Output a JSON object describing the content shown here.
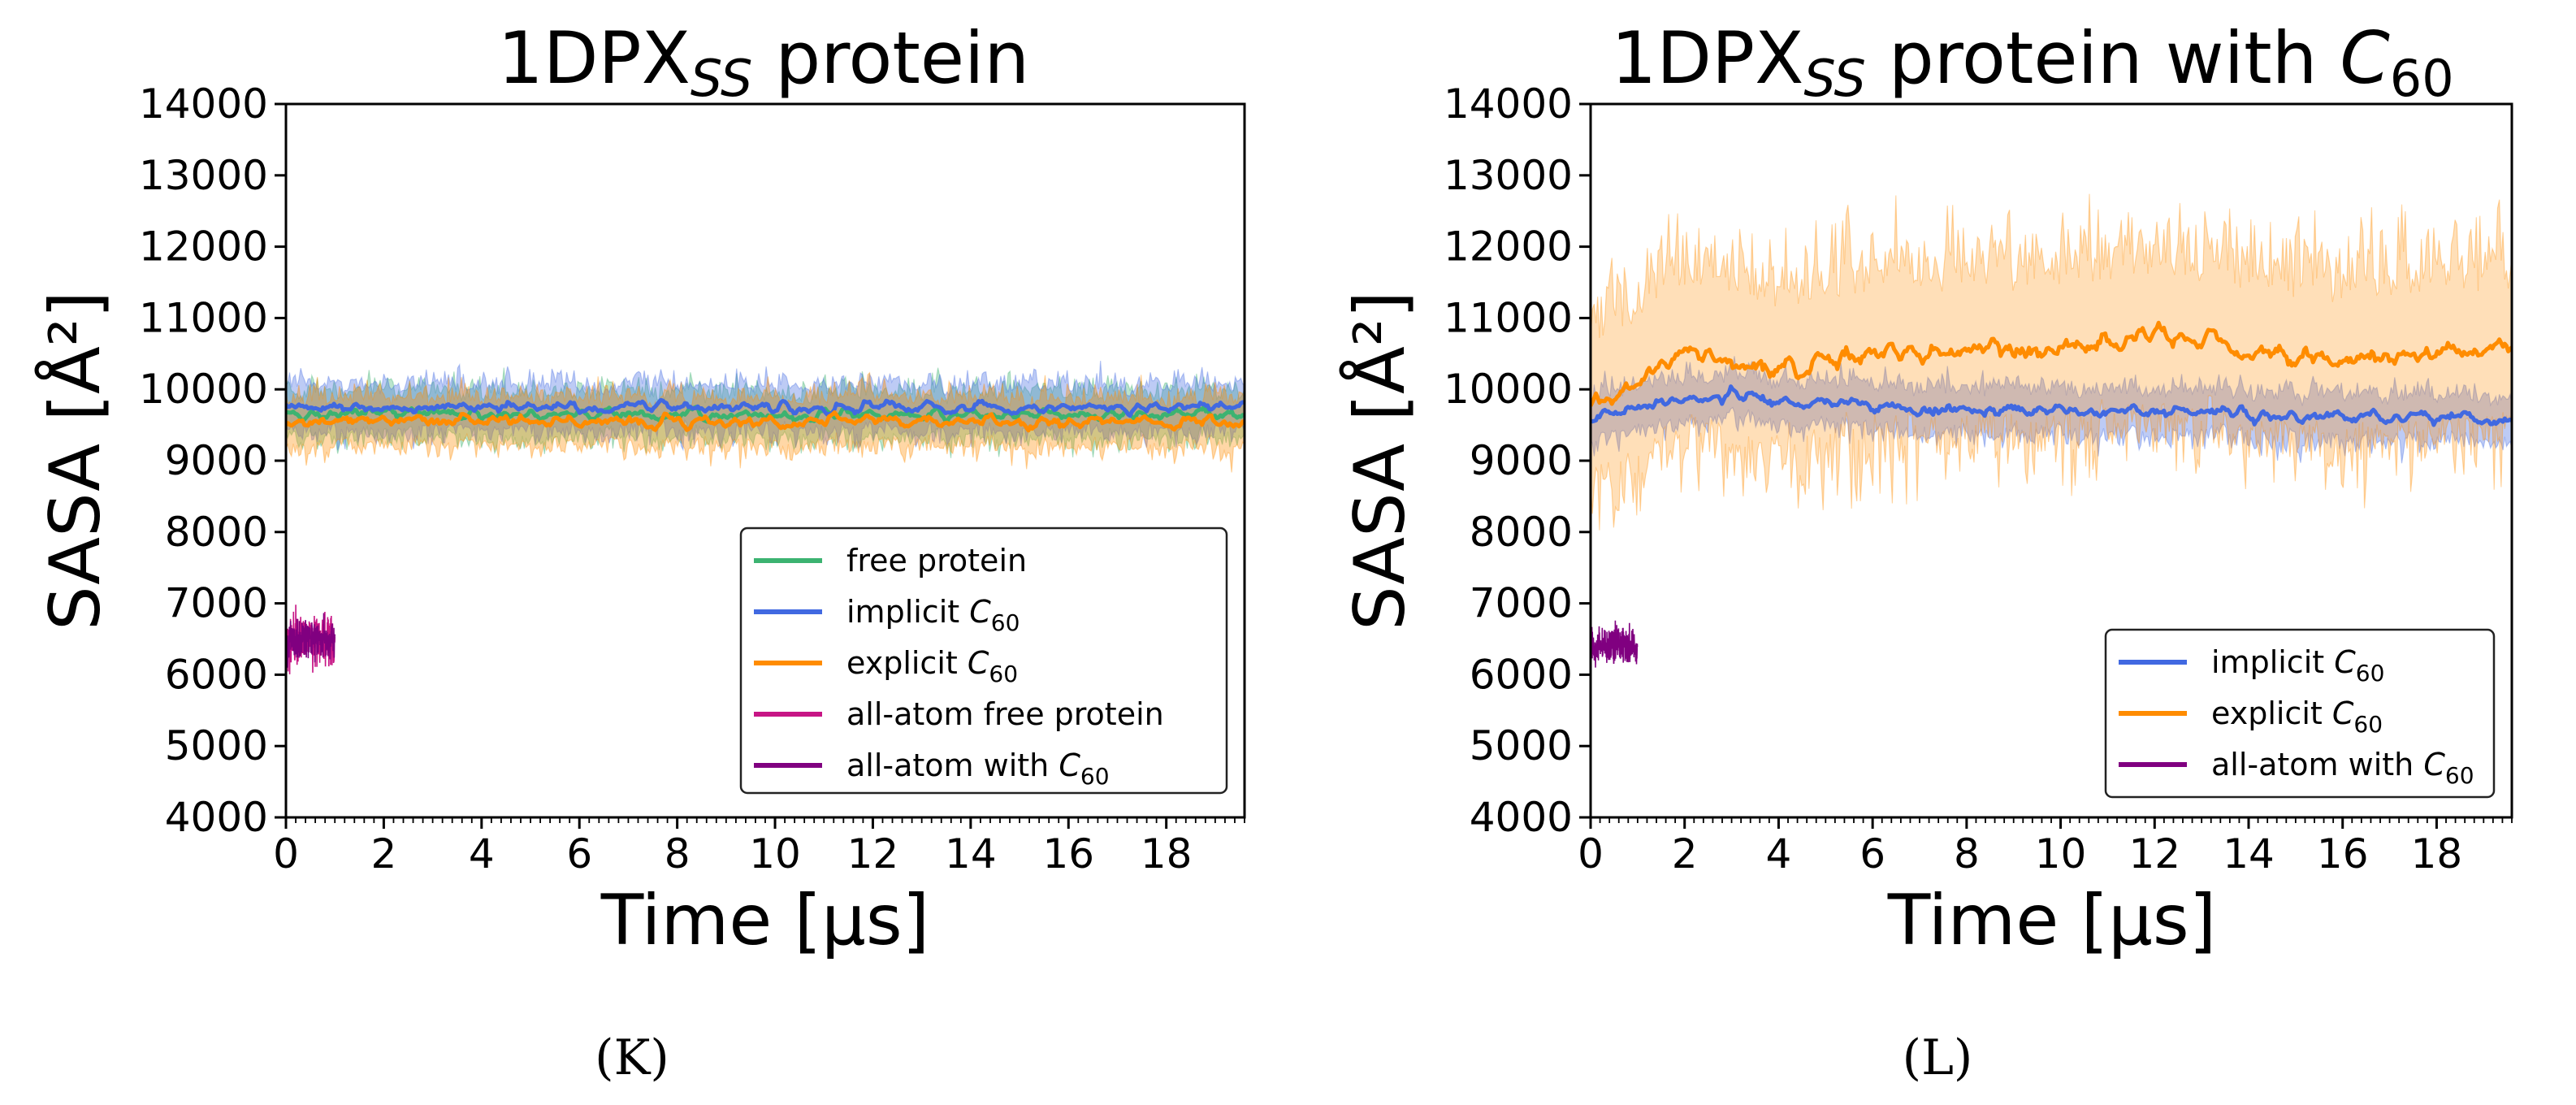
{
  "chart_data": [
    {
      "type": "line",
      "panel": "K",
      "title": {
        "main": "1DPX",
        "sub": "SS",
        "rest": " protein"
      },
      "caption": "(K)",
      "xlabel": "Time [µs]",
      "ylabel": "SASA [Å²]",
      "xlim": [
        0,
        19.6
      ],
      "ylim": [
        4000,
        14000
      ],
      "xticks": [
        "0",
        "2",
        "4",
        "6",
        "8",
        "10",
        "12",
        "14",
        "16",
        "18"
      ],
      "yticks": [
        "4000",
        "5000",
        "6000",
        "7000",
        "8000",
        "9000",
        "10000",
        "11000",
        "12000",
        "13000",
        "14000"
      ],
      "legend_position": "lower-right",
      "series": [
        {
          "name": "free protein",
          "label_main": "free protein",
          "label_sub": "",
          "color": "#3cb371",
          "x_range": [
            0,
            19.6
          ],
          "mean": 9650,
          "band": 430,
          "noise": 70
        },
        {
          "name": "implicit C60",
          "label_main": "implicit C",
          "label_sub": "60",
          "color": "#4169e1",
          "x_range": [
            0,
            19.6
          ],
          "mean": 9750,
          "band": 430,
          "noise": 70
        },
        {
          "name": "explicit C60",
          "label_main": "explicit C",
          "label_sub": "60",
          "color": "#ff8c00",
          "x_range": [
            0,
            19.6
          ],
          "mean": 9550,
          "band": 450,
          "noise": 80
        },
        {
          "name": "all-atom free protein",
          "label_main": "all-atom free protein",
          "label_sub": "",
          "color": "#c71585",
          "x_range": [
            0,
            1
          ],
          "mean": 6500,
          "band": 450,
          "noise": 0
        },
        {
          "name": "all-atom with C60",
          "label_main": "all-atom with C",
          "label_sub": "60",
          "color": "#800080",
          "x_range": [
            0,
            1
          ],
          "mean": 6500,
          "band": 350,
          "noise": 0
        }
      ]
    },
    {
      "type": "line",
      "panel": "L",
      "title": {
        "main": "1DPX",
        "sub": "SS",
        "rest": " protein with ",
        "tail": "C",
        "tailsub": "60"
      },
      "caption": "(L)",
      "xlabel": "Time [µs]",
      "ylabel": "SASA [Å²]",
      "xlim": [
        0,
        19.6
      ],
      "ylim": [
        4000,
        14000
      ],
      "xticks": [
        "0",
        "2",
        "4",
        "6",
        "8",
        "10",
        "12",
        "14",
        "16",
        "18"
      ],
      "yticks": [
        "4000",
        "5000",
        "6000",
        "7000",
        "8000",
        "9000",
        "10000",
        "11000",
        "12000",
        "13000",
        "14000"
      ],
      "legend_position": "lower-right",
      "series": [
        {
          "name": "implicit C60",
          "label_main": "implicit C",
          "label_sub": "60",
          "color": "#4169e1",
          "x_range": [
            0,
            19.6
          ],
          "mean_points": [
            [
              0,
              9600
            ],
            [
              2,
              9850
            ],
            [
              3,
              9900
            ],
            [
              6,
              9750
            ],
            [
              10,
              9700
            ],
            [
              14,
              9650
            ],
            [
              19.6,
              9600
            ]
          ],
          "band": 420,
          "noise": 80
        },
        {
          "name": "explicit C60",
          "label_main": "explicit C",
          "label_sub": "60",
          "color": "#ff8c00",
          "x_range": [
            0,
            19.6
          ],
          "mean_points": [
            [
              0,
              9800
            ],
            [
              2,
              10500
            ],
            [
              4,
              10300
            ],
            [
              6,
              10500
            ],
            [
              10,
              10550
            ],
            [
              12,
              10800
            ],
            [
              14,
              10500
            ],
            [
              16,
              10400
            ],
            [
              19.6,
              10600
            ]
          ],
          "band": 1600,
          "noise": 130
        },
        {
          "name": "all-atom with C60",
          "label_main": "all-atom with C",
          "label_sub": "60",
          "color": "#800080",
          "x_range": [
            0,
            1
          ],
          "mean": 6400,
          "band": 350,
          "noise": 0
        }
      ]
    }
  ]
}
